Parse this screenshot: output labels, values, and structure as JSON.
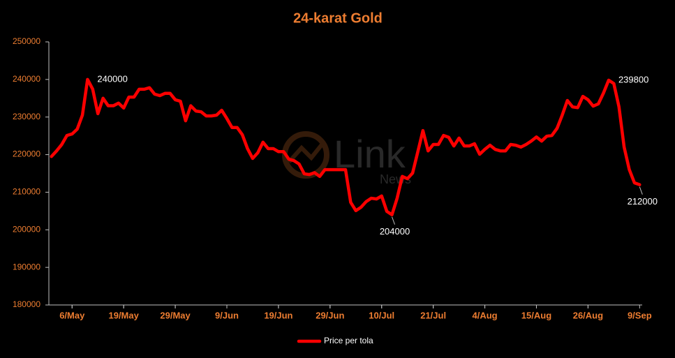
{
  "chart_data": {
    "type": "line",
    "title": "24-karat Gold",
    "categories": [
      null,
      null,
      null,
      null,
      "6/May",
      null,
      null,
      null,
      null,
      null,
      null,
      null,
      null,
      null,
      "19/May",
      null,
      null,
      null,
      null,
      null,
      null,
      null,
      null,
      null,
      "29/May",
      null,
      null,
      null,
      null,
      null,
      null,
      null,
      null,
      null,
      "9/Jun",
      null,
      null,
      null,
      null,
      null,
      null,
      null,
      null,
      null,
      "19/Jun",
      null,
      null,
      null,
      null,
      null,
      null,
      null,
      null,
      null,
      "29/Jun",
      null,
      null,
      null,
      null,
      null,
      null,
      null,
      null,
      null,
      "10/Jul",
      null,
      null,
      null,
      null,
      null,
      null,
      null,
      null,
      null,
      "21/Jul",
      null,
      null,
      null,
      null,
      null,
      null,
      null,
      null,
      null,
      "4/Aug",
      null,
      null,
      null,
      null,
      null,
      null,
      null,
      null,
      null,
      "15/Aug",
      null,
      null,
      null,
      null,
      null,
      null,
      null,
      null,
      null,
      "26/Aug",
      null,
      null,
      null,
      null,
      null,
      null,
      null,
      null,
      null,
      "9/Sep"
    ],
    "series": [
      {
        "name": "Price per tola",
        "color": "#ff0000",
        "values": [
          219500,
          221000,
          222700,
          225100,
          225500,
          226800,
          230500,
          240000,
          237400,
          230900,
          235000,
          233000,
          233000,
          233700,
          232400,
          235300,
          235300,
          237400,
          237400,
          237800,
          236100,
          235700,
          236300,
          236300,
          234600,
          234200,
          229000,
          233000,
          231600,
          231400,
          230300,
          230300,
          230500,
          231800,
          229600,
          227200,
          227200,
          225300,
          221600,
          219000,
          220500,
          223300,
          221600,
          221600,
          220800,
          220800,
          218800,
          218400,
          217500,
          214900,
          214700,
          215200,
          214200,
          216000,
          216000,
          216000,
          216000,
          216000,
          207300,
          205100,
          206000,
          207500,
          208400,
          208200,
          209000,
          204900,
          204000,
          208400,
          214200,
          213600,
          215100,
          220700,
          226400,
          221000,
          222700,
          222700,
          225100,
          224600,
          222300,
          224400,
          222300,
          222300,
          222900,
          220100,
          221400,
          222500,
          221400,
          221000,
          221000,
          222700,
          222500,
          222000,
          222700,
          223600,
          224700,
          223600,
          224900,
          225100,
          227000,
          230500,
          234400,
          232700,
          232500,
          235500,
          234600,
          232900,
          233500,
          236400,
          239800,
          238900,
          232700,
          222000,
          216000,
          212500,
          212000
        ]
      }
    ],
    "annotations": [
      {
        "label": "240000",
        "point": 7
      },
      {
        "label": "204000",
        "point": 66
      },
      {
        "label": "239800",
        "point": 108
      },
      {
        "label": "212000",
        "point": 114
      }
    ],
    "ylim": [
      180000,
      250000
    ],
    "yticks": [
      180000,
      190000,
      200000,
      210000,
      220000,
      230000,
      240000,
      250000
    ],
    "legend": "bottom",
    "watermark": {
      "brand": "Link",
      "sub": "News"
    }
  }
}
